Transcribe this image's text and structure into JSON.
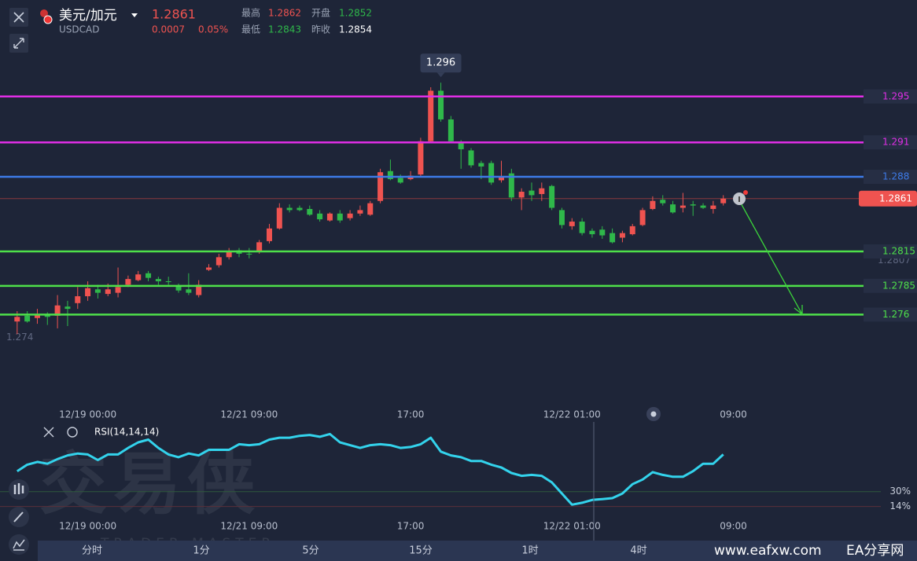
{
  "header": {
    "symbol_name": "美元/加元",
    "symbol_code": "USDCAD",
    "price": "1.2861",
    "change": "0.0007",
    "change_pct": "0.05%",
    "high_label": "最高",
    "high": "1.2862",
    "open_label": "开盘",
    "open": "1.2852",
    "low_label": "最低",
    "low": "1.2843",
    "prev_label": "昨收",
    "prev": "1.2854"
  },
  "chart_data": [
    {
      "type": "candlestick",
      "up_color": "#ef5350",
      "down_color": "#2fb84a",
      "open": [
        1.2754,
        1.2759,
        1.2757,
        1.276,
        1.2759,
        1.2767,
        1.277,
        1.2776,
        1.2782,
        1.2778,
        1.2779,
        1.2786,
        1.279,
        1.2796,
        1.2791,
        1.2789,
        1.2785,
        1.2782,
        1.2777,
        1.2799,
        1.2803,
        1.281,
        1.2816,
        1.2813,
        1.2815,
        1.2824,
        1.2835,
        1.2853,
        1.2853,
        1.2852,
        1.2848,
        1.2842,
        1.2848,
        1.2844,
        1.2848,
        1.2847,
        1.2859,
        1.2885,
        1.2879,
        1.2878,
        1.2882,
        1.2911,
        1.2955,
        1.293,
        1.291,
        1.2903,
        1.2892,
        1.2892,
        1.2877,
        1.2883,
        1.2862,
        1.2868,
        1.2865,
        1.2872,
        1.2851,
        1.2837,
        1.2841,
        1.2833,
        1.2834,
        1.2831,
        1.2827,
        1.283,
        1.2838,
        1.2852,
        1.286,
        1.2856,
        1.2853,
        1.2856,
        1.2855,
        1.2852,
        1.2857
      ],
      "high": [
        1.2763,
        1.2763,
        1.2765,
        1.2762,
        1.2777,
        1.2772,
        1.2784,
        1.2789,
        1.2786,
        1.2787,
        1.2801,
        1.2794,
        1.2798,
        1.2798,
        1.2793,
        1.2793,
        1.2787,
        1.2796,
        1.279,
        1.2804,
        1.2813,
        1.2818,
        1.2818,
        1.2818,
        1.2825,
        1.2839,
        1.2857,
        1.2856,
        1.2855,
        1.2855,
        1.2851,
        1.2849,
        1.2851,
        1.2851,
        1.2855,
        1.2859,
        1.2887,
        1.2895,
        1.2882,
        1.2885,
        1.2914,
        1.2958,
        1.2962,
        1.2933,
        1.2912,
        1.2905,
        1.2894,
        1.2894,
        1.2894,
        1.2887,
        1.287,
        1.2875,
        1.2875,
        1.2873,
        1.2853,
        1.2844,
        1.2844,
        1.2835,
        1.2837,
        1.2835,
        1.2833,
        1.2839,
        1.2853,
        1.2863,
        1.2864,
        1.2859,
        1.2866,
        1.2859,
        1.2857,
        1.2859,
        1.2864
      ],
      "low": [
        1.2743,
        1.2753,
        1.2752,
        1.2751,
        1.2748,
        1.275,
        1.2765,
        1.2772,
        1.2774,
        1.2776,
        1.2775,
        1.2784,
        1.2789,
        1.2789,
        1.2786,
        1.2786,
        1.2779,
        1.2777,
        1.2775,
        1.2798,
        1.2801,
        1.2808,
        1.281,
        1.2809,
        1.2813,
        1.2822,
        1.2834,
        1.2849,
        1.285,
        1.2846,
        1.2841,
        1.2841,
        1.284,
        1.2842,
        1.2846,
        1.2846,
        1.2857,
        1.2877,
        1.2874,
        1.2877,
        1.288,
        1.291,
        1.2928,
        1.291,
        1.2887,
        1.2888,
        1.2878,
        1.2873,
        1.2875,
        1.2859,
        1.2851,
        1.2859,
        1.2859,
        1.2851,
        1.2835,
        1.2834,
        1.2829,
        1.2827,
        1.2826,
        1.2822,
        1.2823,
        1.2829,
        1.2837,
        1.2851,
        1.2855,
        1.2848,
        1.2849,
        1.2846,
        1.2852,
        1.2848,
        1.2855
      ],
      "close": [
        1.2758,
        1.2754,
        1.276,
        1.2758,
        1.2768,
        1.2765,
        1.2776,
        1.2783,
        1.2779,
        1.2782,
        1.2784,
        1.2791,
        1.2795,
        1.2792,
        1.2789,
        1.2789,
        1.2781,
        1.2779,
        1.2786,
        1.2801,
        1.281,
        1.2815,
        1.2813,
        1.2813,
        1.2823,
        1.2835,
        1.2853,
        1.2851,
        1.2851,
        1.2847,
        1.2843,
        1.2848,
        1.2842,
        1.2848,
        1.2851,
        1.2857,
        1.2884,
        1.2878,
        1.2875,
        1.2881,
        1.2911,
        1.2955,
        1.293,
        1.2911,
        1.2904,
        1.289,
        1.2889,
        1.2875,
        1.288,
        1.2862,
        1.2867,
        1.2864,
        1.287,
        1.2853,
        1.2838,
        1.2841,
        1.2831,
        1.283,
        1.2829,
        1.2823,
        1.2831,
        1.2837,
        1.2851,
        1.2859,
        1.2857,
        1.2849,
        1.2855,
        1.2855,
        1.2853,
        1.2855,
        1.2861
      ],
      "xlim": [
        -1.7,
        83.9
      ],
      "xticks": [
        {
          "value": 7,
          "label": "12/19 00:00"
        },
        {
          "value": 23,
          "label": "12/21 09:00"
        },
        {
          "value": 39,
          "label": "17:00"
        },
        {
          "value": 55,
          "label": "12/22 01:00"
        },
        {
          "value": 71,
          "label": "09:00"
        }
      ],
      "ylim": [
        1.2685,
        1.3034
      ],
      "yticks": [
        1.2807,
        1.274
      ],
      "levels": [
        {
          "value": 1.295,
          "color": "#e02ee6"
        },
        {
          "value": 1.291,
          "color": "#e02ee6"
        },
        {
          "value": 1.288,
          "color": "#3d7be8"
        },
        {
          "value": 1.2815,
          "color": "#4ee04a"
        },
        {
          "value": 1.2785,
          "color": "#4ee04a"
        },
        {
          "value": 1.276,
          "color": "#4ee04a"
        }
      ],
      "last_price": 1.2861,
      "peak_label": "1.296"
    },
    {
      "type": "line",
      "title": "RSI(14,14,14)",
      "color": "#33d3ec",
      "values": [
        52,
        59,
        62,
        60,
        65,
        69,
        71,
        70,
        64,
        70,
        70,
        77,
        83,
        86,
        77,
        70,
        67,
        71,
        69,
        75,
        75,
        75,
        81,
        80,
        81,
        86,
        88,
        88,
        90,
        91,
        89,
        92,
        83,
        80,
        77,
        80,
        81,
        80,
        77,
        78,
        81,
        88,
        73,
        69,
        67,
        63,
        63,
        59,
        56,
        50,
        47,
        48,
        47,
        40,
        28,
        16,
        18,
        21,
        22,
        23,
        28,
        38,
        43,
        51,
        48,
        46,
        46,
        52,
        60,
        60,
        70
      ],
      "ylim": [
        1,
        105
      ],
      "yticks": [
        {
          "value": 30,
          "label": "30%"
        },
        {
          "value": 14,
          "label": "14%"
        }
      ]
    }
  ],
  "timeframes": [
    "分时",
    "1分",
    "5分",
    "15分",
    "1时",
    "4时"
  ],
  "watermark": {
    "cn": "交易侠",
    "en": "TRADER MASTER"
  },
  "footer": {
    "site": "www.eafxw.com",
    "brand": "EA分享网"
  }
}
